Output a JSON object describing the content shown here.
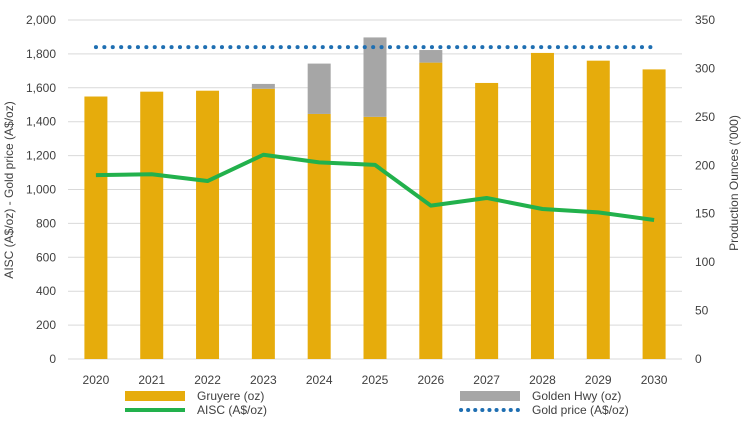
{
  "chart_data": {
    "type": "bar",
    "categories": [
      "2020",
      "2021",
      "2022",
      "2023",
      "2024",
      "2025",
      "2026",
      "2027",
      "2028",
      "2029",
      "2030"
    ],
    "left_axis": {
      "label": "AISC (A$/oz) - Gold price (A$/oz)",
      "min": 0,
      "max": 2000,
      "step": 200,
      "tick_labels": [
        "0",
        "200",
        "400",
        "600",
        "800",
        "1,000",
        "1,200",
        "1,400",
        "1,600",
        "1,800",
        "2,000"
      ]
    },
    "right_axis": {
      "label": "Production Ounces ('000)",
      "min": 0,
      "max": 350,
      "step": 50,
      "tick_labels": [
        "0",
        "50",
        "100",
        "150",
        "200",
        "250",
        "300",
        "350"
      ]
    },
    "bar_series": [
      {
        "name": "Gruyere (oz)",
        "axis": "right",
        "color": "#e6ac0c",
        "values": [
          271,
          276,
          277,
          279,
          253,
          250,
          306,
          285,
          316,
          308,
          299
        ]
      },
      {
        "name": "Golden Hwy (oz)",
        "axis": "right",
        "color": "#a6a6a6",
        "values": [
          0,
          0,
          0,
          5,
          52,
          82,
          13,
          0,
          0,
          0,
          0
        ]
      }
    ],
    "line_series": [
      {
        "name": "AISC (A$/oz)",
        "axis": "left",
        "color": "#22b14c",
        "style": "solid",
        "values": [
          1085,
          1090,
          1050,
          1205,
          1160,
          1145,
          905,
          950,
          885,
          865,
          820
        ]
      },
      {
        "name": "Gold price (A$/oz)",
        "axis": "left",
        "color": "#1f6fb2",
        "style": "dotted",
        "values": [
          1840,
          1840,
          1840,
          1840,
          1840,
          1840,
          1840,
          1840,
          1840,
          1840,
          1840
        ]
      }
    ],
    "stacked": true,
    "grid": true,
    "legend_position": "bottom"
  }
}
